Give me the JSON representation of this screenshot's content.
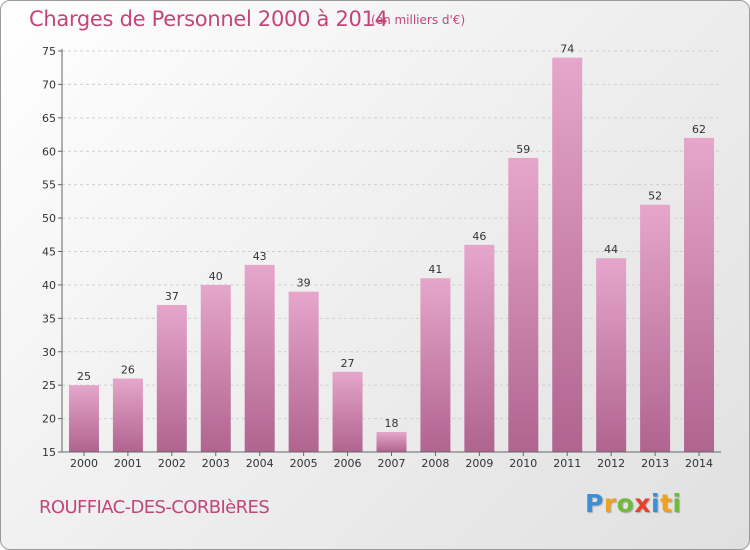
{
  "title": "Charges de Personnel 2000 à 2014",
  "unit_note": "(en milliers d'€)",
  "commune": "ROUFFIAC-DES-CORBIèRES",
  "logo": {
    "text": "Proxiti",
    "letters": [
      {
        "char": "P",
        "color": "#3a8fd6"
      },
      {
        "char": "r",
        "color": "#f0a020"
      },
      {
        "char": "o",
        "color": "#6fba3c"
      },
      {
        "char": "x",
        "color": "#e8402a"
      },
      {
        "char": "i",
        "color": "#3a8fd6"
      },
      {
        "char": "t",
        "color": "#f0a020"
      },
      {
        "char": "i",
        "color": "#6fba3c"
      }
    ]
  },
  "colors": {
    "accent": "#c2467a",
    "bar_light": "#e6a6cb",
    "bar_dark": "#b0648f",
    "grid": "#cfcfcf"
  },
  "chart_data": {
    "type": "bar",
    "title": "Charges de Personnel 2000 à 2014",
    "xlabel": "",
    "ylabel": "",
    "categories": [
      "2000",
      "2001",
      "2002",
      "2003",
      "2004",
      "2005",
      "2006",
      "2007",
      "2008",
      "2009",
      "2010",
      "2011",
      "2012",
      "2013",
      "2014"
    ],
    "values": [
      25,
      26,
      37,
      40,
      43,
      39,
      27,
      18,
      41,
      46,
      59,
      74,
      44,
      52,
      62
    ],
    "ylim": [
      15,
      75
    ],
    "yticks": [
      15,
      20,
      25,
      30,
      35,
      40,
      45,
      50,
      55,
      60,
      65,
      70,
      75
    ],
    "grid": "horizontal dashed"
  }
}
